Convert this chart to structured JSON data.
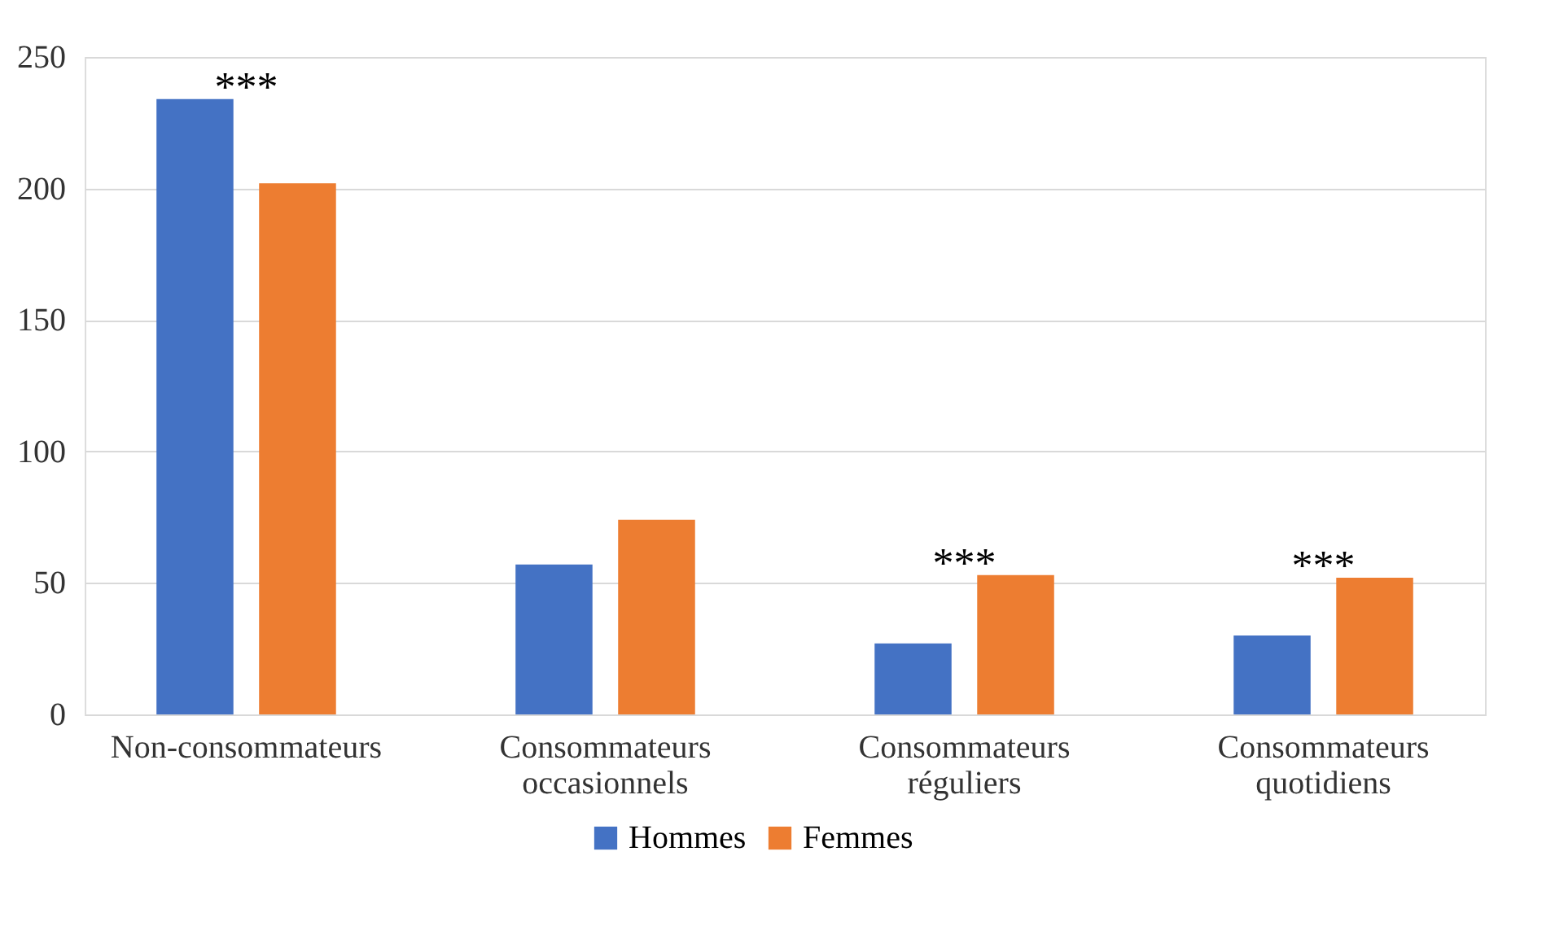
{
  "chart_data": {
    "type": "bar",
    "categories": [
      "Non-consommateurs",
      "Consommateurs occasionnels",
      "Consommateurs réguliers",
      "Consommateurs quotidiens"
    ],
    "series": [
      {
        "name": "Hommes",
        "color": "#4472c4",
        "values": [
          234,
          57,
          27,
          30
        ]
      },
      {
        "name": "Femmes",
        "color": "#ed7d31",
        "values": [
          202,
          74,
          53,
          52
        ]
      }
    ],
    "ylim": [
      0,
      250
    ],
    "yticks": [
      0,
      50,
      100,
      150,
      200,
      250
    ],
    "grid": "y",
    "legend": "bottom",
    "annotations": [
      "***",
      "***",
      "***"
    ]
  }
}
